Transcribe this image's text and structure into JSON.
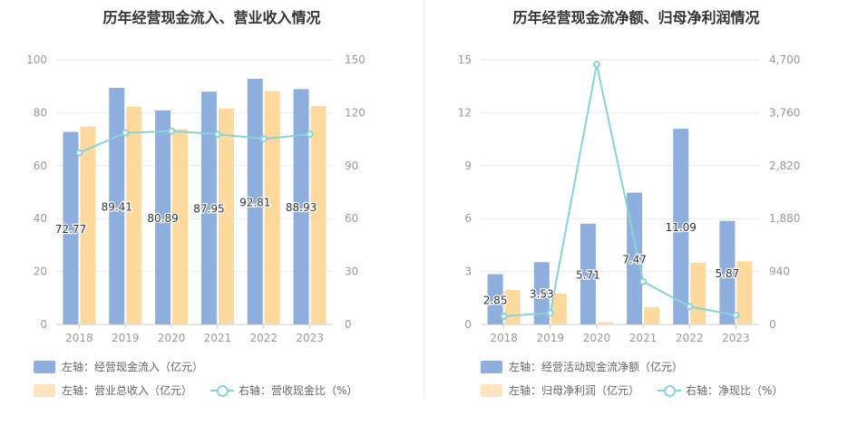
{
  "chart_data": [
    {
      "type": "bar",
      "title": "历年经营现金流入、营业收入情况",
      "categories": [
        "2018",
        "2019",
        "2020",
        "2021",
        "2022",
        "2023"
      ],
      "left_axis": {
        "ylim": [
          0,
          100
        ],
        "ticks": [
          "0",
          "20",
          "40",
          "60",
          "80",
          "100"
        ]
      },
      "right_axis": {
        "ylim": [
          0,
          150
        ],
        "ticks": [
          "0",
          "30",
          "60",
          "90",
          "120",
          "150"
        ]
      },
      "series": [
        {
          "name": "左轴：经营现金流入（亿元）",
          "type": "bar",
          "axis": "left",
          "color": "#8eaedd",
          "values": [
            72.77,
            89.41,
            80.89,
            87.95,
            92.81,
            88.93
          ],
          "labels": [
            "72.77",
            "89.41",
            "80.89",
            "87.95",
            "92.81",
            "88.93"
          ]
        },
        {
          "name": "左轴：营业总收入（亿元）",
          "type": "bar",
          "axis": "left",
          "color": "#fdd99e",
          "values": [
            74.8,
            82.3,
            73.8,
            81.6,
            88.2,
            82.5
          ]
        },
        {
          "name": "右轴：营收现金比（%）",
          "type": "line",
          "axis": "right",
          "color": "#86d3d9",
          "values": [
            97.3,
            108.6,
            109.6,
            107.8,
            105.2,
            107.8
          ]
        }
      ],
      "grid": true,
      "legend_position": "bottom-left"
    },
    {
      "type": "bar",
      "title": "历年经营现金流净额、归母净利润情况",
      "categories": [
        "2018",
        "2019",
        "2020",
        "2021",
        "2022",
        "2023"
      ],
      "left_axis": {
        "ylim": [
          0,
          15
        ],
        "ticks": [
          "0",
          "3",
          "6",
          "9",
          "12",
          "15"
        ]
      },
      "right_axis": {
        "ylim": [
          0,
          4700
        ],
        "ticks": [
          "0",
          "940",
          "1,880",
          "2,820",
          "3,760",
          "4,700"
        ]
      },
      "series": [
        {
          "name": "左轴：经营活动现金流净额（亿元）",
          "type": "bar",
          "axis": "left",
          "color": "#8eaedd",
          "values": [
            2.85,
            3.53,
            5.71,
            7.47,
            11.09,
            5.87
          ],
          "labels": [
            "2.85",
            "3.53",
            "5.71",
            "7.47",
            "11.09",
            "5.87"
          ]
        },
        {
          "name": "左轴：归母净利润（亿元）",
          "type": "bar",
          "axis": "left",
          "color": "#fdd99e",
          "values": [
            1.95,
            1.75,
            0.12,
            0.98,
            3.49,
            3.58
          ]
        },
        {
          "name": "右轴：净现比（%）",
          "type": "line",
          "axis": "right",
          "color": "#86d3d9",
          "values": [
            146,
            202,
            4620,
            762,
            318,
            164
          ]
        }
      ],
      "grid": true,
      "legend_position": "bottom-left"
    }
  ]
}
